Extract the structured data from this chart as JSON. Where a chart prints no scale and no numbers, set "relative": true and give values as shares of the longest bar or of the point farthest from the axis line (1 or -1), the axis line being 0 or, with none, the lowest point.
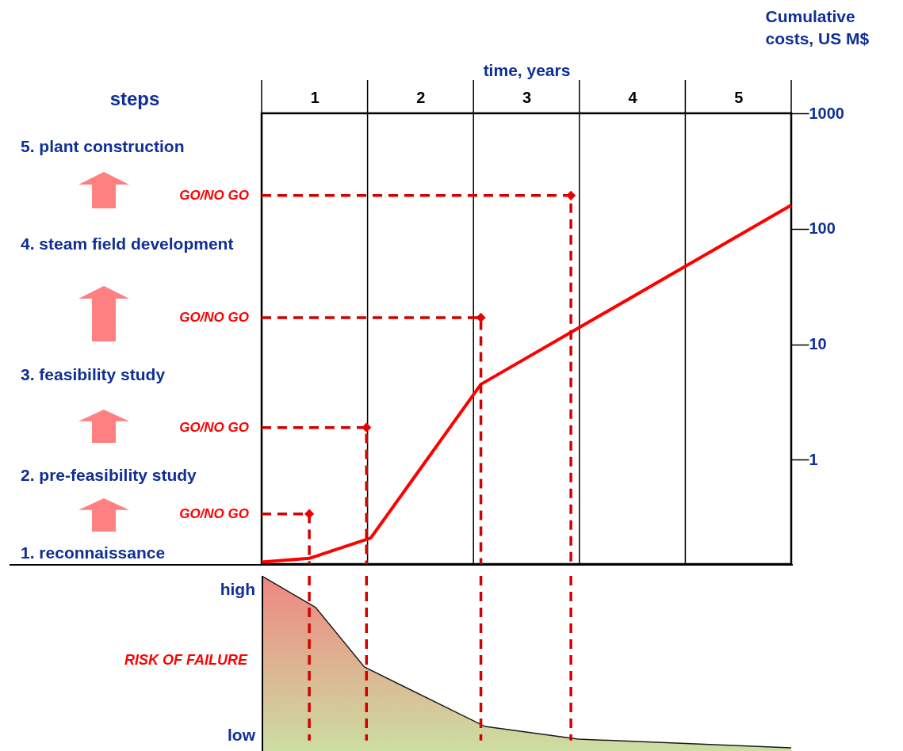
{
  "chart_data": [
    {
      "type": "line",
      "xlabel": "time, years",
      "ylabel": "Cumulative costs, US M$",
      "log": true,
      "grid": "x",
      "xlim": [
        0,
        5
      ],
      "xticks": [
        {
          "value": 0,
          "label": null
        },
        {
          "value": 0.5,
          "label": "1"
        },
        {
          "value": 1,
          "label": null
        },
        {
          "value": 1.5,
          "label": "2"
        },
        {
          "value": 2,
          "label": null
        },
        {
          "value": 2.5,
          "label": "3"
        },
        {
          "value": 3,
          "label": null
        },
        {
          "value": 3.5,
          "label": "4"
        },
        {
          "value": 4,
          "label": null
        },
        {
          "value": 4.5,
          "label": "5"
        },
        {
          "value": 5,
          "label": null
        }
      ],
      "ylim": [
        0.125,
        1000
      ],
      "yticks": [
        1,
        10,
        100,
        1000
      ],
      "series": [
        {
          "type": "line",
          "color": "#ff0000",
          "x": [
            0,
            0.45,
            1.03,
            2.07,
            5
          ],
          "values": [
            0.13,
            0.14,
            0.21,
            4.5,
            160
          ]
        },
        {
          "type": "line",
          "line_style": "dashed",
          "color": "#d40000",
          "x": [
            0,
            0.45,
            0.45
          ],
          "values": [
            0.34,
            0.34,
            0.125
          ]
        },
        {
          "type": "line",
          "line_style": "dashed",
          "color": "#d40000",
          "x": [
            0,
            0.99,
            0.99
          ],
          "values": [
            1.9,
            1.9,
            0.125
          ]
        },
        {
          "type": "line",
          "line_style": "dashed",
          "color": "#d40000",
          "x": [
            0,
            2.07,
            2.07
          ],
          "values": [
            17,
            17,
            0.125
          ]
        },
        {
          "type": "line",
          "line_style": "dashed",
          "color": "#d40000",
          "x": [
            0,
            2.92,
            2.92
          ],
          "values": [
            194,
            194,
            0.125
          ]
        },
        {
          "type": "scatter",
          "marker": "diamond",
          "color": "#ee0000",
          "x": [
            0.45,
            0.99,
            2.07,
            2.92
          ],
          "values": [
            0.34,
            1.9,
            17,
            194
          ]
        }
      ],
      "annotations": [
        "steps",
        "5. plant construction",
        "4. steam field development",
        "3. feasibility study",
        "2. pre-feasibility study",
        "1. reconnaissance",
        "GO/NO GO",
        "GO/NO GO",
        "GO/NO GO",
        "GO/NO GO"
      ]
    },
    {
      "type": "area",
      "relative": true,
      "tick_labels": false,
      "xlim": [
        0,
        5
      ],
      "series": [
        {
          "color": "#e8534a",
          "x": [
            0,
            0.51,
            0.97,
            2.11,
            2.99,
            5
          ],
          "values": [
            1,
            0.82,
            0.48,
            0.14,
            0.068,
            0.018
          ]
        },
        {
          "type": "line",
          "line_style": "dashed",
          "color": "#d40000",
          "x": [
            0.45,
            0.45
          ],
          "values": [
            1,
            0.06
          ]
        },
        {
          "type": "line",
          "line_style": "dashed",
          "color": "#d40000",
          "x": [
            0.99,
            0.99
          ],
          "values": [
            1,
            0.06
          ]
        },
        {
          "type": "line",
          "line_style": "dashed",
          "color": "#d40000",
          "x": [
            2.07,
            2.07
          ],
          "values": [
            1,
            0.06
          ]
        },
        {
          "type": "line",
          "line_style": "dashed",
          "color": "#d40000",
          "x": [
            2.92,
            2.92
          ],
          "values": [
            1,
            0.06
          ]
        }
      ],
      "annotations": [
        "high",
        "low",
        "RISK OF FAILURE"
      ]
    }
  ]
}
